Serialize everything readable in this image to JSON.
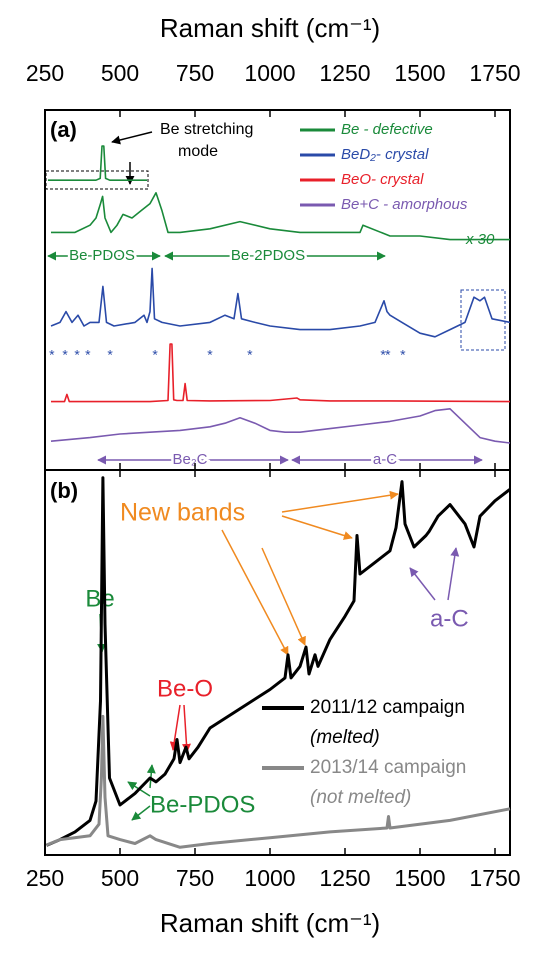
{
  "chart_data": [
    {
      "type": "line",
      "panel_label": "(a)",
      "x_label": "Raman shift (cm⁻¹)",
      "xlim": [
        250,
        1800
      ],
      "xticks": [
        250,
        500,
        750,
        1000,
        1250,
        1500,
        1750
      ],
      "ylim": [
        0,
        100
      ],
      "series": [
        {
          "name": "Be - defective",
          "color": "#1a8a3a",
          "x": [
            270,
            350,
            400,
            420,
            435,
            442,
            450,
            470,
            490,
            510,
            540,
            570,
            600,
            620,
            640,
            660,
            700,
            800,
            900,
            1000,
            1100,
            1200,
            1300,
            1310,
            1400,
            1500,
            1600,
            1700,
            1800
          ],
          "values": [
            66,
            66,
            68,
            70,
            74,
            76,
            70,
            66,
            68,
            71,
            70,
            72,
            74,
            77,
            72,
            66,
            66,
            67,
            69,
            67,
            66,
            66,
            66,
            68,
            65,
            65,
            64,
            64,
            64
          ]
        },
        {
          "name": "BeD₂- crystal",
          "color": "#2a4aa8",
          "x": [
            270,
            300,
            320,
            340,
            360,
            380,
            400,
            430,
            443,
            455,
            480,
            550,
            580,
            590,
            600,
            607,
            615,
            640,
            700,
            800,
            850,
            880,
            893,
            905,
            950,
            1000,
            1100,
            1200,
            1300,
            1350,
            1380,
            1390,
            1400,
            1440,
            1500,
            1550,
            1600,
            1650,
            1680,
            1700,
            1715,
            1740,
            1800
          ],
          "values": [
            40,
            41,
            44,
            41,
            43,
            40,
            41,
            41,
            51,
            41,
            40,
            41,
            43,
            41,
            44,
            56,
            42,
            41,
            40,
            41,
            43,
            42,
            49,
            42,
            41,
            40,
            39,
            39,
            40,
            41,
            47,
            44,
            43,
            41,
            38,
            37,
            39,
            41,
            48,
            47,
            48,
            42,
            41
          ]
        },
        {
          "name": "BeO- crystal",
          "color": "#e8202a",
          "x": [
            270,
            315,
            323,
            331,
            400,
            500,
            600,
            660,
            667,
            673,
            679,
            690,
            710,
            717,
            724,
            800,
            1000,
            1090,
            1100,
            1200,
            1400,
            1800
          ],
          "values": [
            19,
            19,
            21,
            19,
            19,
            19,
            19,
            19.3,
            35,
            35,
            19.5,
            19.3,
            19.3,
            24,
            19.3,
            19.2,
            19.3,
            20,
            19.5,
            19.2,
            19.2,
            19
          ]
        },
        {
          "name": "Be+C - amorphous",
          "color": "#7a5ab0",
          "x": [
            270,
            400,
            500,
            600,
            700,
            800,
            850,
            900,
            950,
            1000,
            1050,
            1100,
            1200,
            1300,
            1400,
            1500,
            1550,
            1600,
            1650,
            1700,
            1750,
            1800
          ],
          "values": [
            8,
            9,
            10,
            10.5,
            11,
            12,
            13,
            14.5,
            13,
            11,
            10.5,
            10.5,
            11.5,
            12.5,
            13.5,
            15,
            16.5,
            17,
            13,
            9,
            8,
            7.5
          ]
        }
      ],
      "inset": {
        "color": "#1a8a3a",
        "x": [
          260,
          420,
          434,
          440,
          446,
          452,
          466,
          590
        ],
        "values": [
          80.5,
          80.5,
          81,
          90,
          90,
          81,
          80.5,
          80.5
        ]
      },
      "inset_annotation": [
        "Be stretching",
        "mode"
      ],
      "scale_note": "x 30",
      "range_labels": [
        "Be-PDOS",
        "Be-2PDOS",
        "Be₂C",
        "a-C"
      ],
      "asterisk": "*",
      "asterisk_x": [
        273,
        317,
        357,
        393,
        467,
        617,
        800,
        933,
        1377,
        1393,
        1443
      ]
    },
    {
      "type": "line",
      "panel_label": "(b)",
      "x_label": "Raman shift (cm⁻¹)",
      "xlim": [
        250,
        1800
      ],
      "xticks": [
        250,
        500,
        750,
        1000,
        1250,
        1500,
        1750
      ],
      "ylim": [
        0,
        100
      ],
      "series": [
        {
          "name": "2011/12 campaign",
          "note": "(melted)",
          "color": "#000000",
          "x": [
            255,
            300,
            350,
            400,
            420,
            435,
            443,
            450,
            465,
            500,
            550,
            600,
            620,
            650,
            680,
            690,
            700,
            720,
            730,
            760,
            800,
            900,
            1000,
            1050,
            1060,
            1070,
            1100,
            1120,
            1130,
            1150,
            1160,
            1200,
            1250,
            1280,
            1290,
            1300,
            1350,
            1400,
            1420,
            1440,
            1450,
            1480,
            1520,
            1530,
            1560,
            1600,
            1650,
            1680,
            1700,
            1750,
            1800
          ],
          "values": [
            2.5,
            4,
            6,
            9,
            14,
            40,
            98,
            60,
            20,
            13,
            16,
            20,
            19,
            21,
            25,
            30,
            24,
            28,
            25,
            28,
            33,
            38,
            43,
            46,
            52,
            46,
            49,
            54,
            47,
            52,
            49,
            56,
            62,
            66,
            83,
            73,
            76,
            79,
            85,
            97,
            86,
            80,
            83,
            84,
            88,
            91,
            86,
            80,
            88,
            92,
            95
          ]
        },
        {
          "name": "2013/14 campaign",
          "note": "(not melted)",
          "color": "#888888",
          "x": [
            255,
            300,
            400,
            430,
            438,
            443,
            450,
            460,
            500,
            550,
            600,
            620,
            700,
            800,
            1000,
            1200,
            1390,
            1395,
            1400,
            1600,
            1800
          ],
          "values": [
            2.6,
            4,
            5,
            8,
            20,
            36,
            15,
            5,
            4,
            3,
            5,
            4,
            2,
            3,
            4.5,
            6,
            7,
            10,
            7,
            9,
            12
          ]
        }
      ],
      "annotations": [
        "New bands",
        "Be",
        "Be-O",
        "a-C",
        "Be-PDOS"
      ]
    }
  ]
}
